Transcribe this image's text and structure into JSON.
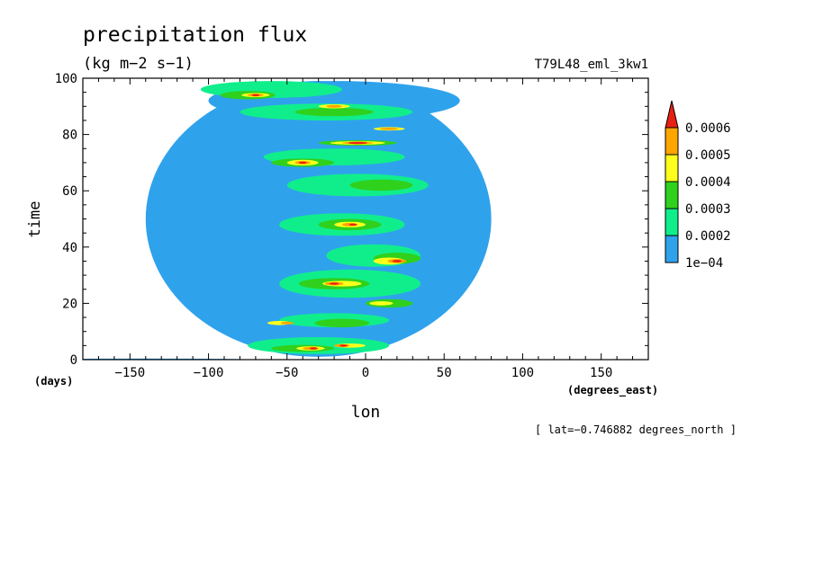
{
  "chart_data": {
    "type": "heatmap",
    "title": "precipitation flux",
    "units": "(kg m−2 s−1)",
    "run_label": "T79L48_eml_3kw1",
    "xlabel": "lon",
    "x_units": "(degrees_east)",
    "ylabel": "time",
    "y_units": "(days)",
    "footer": "[ lat=−0.746882 degrees_north ]",
    "xlim": [
      -180,
      180
    ],
    "ylim": [
      0,
      100
    ],
    "x_ticks": [
      -150,
      -100,
      -50,
      0,
      50,
      100,
      150
    ],
    "x_tick_labels": [
      "−150",
      "−100",
      "−50",
      "0",
      "50",
      "100",
      "150"
    ],
    "y_ticks": [
      0,
      20,
      40,
      60,
      80,
      100
    ],
    "y_tick_labels": [
      "0",
      "20",
      "40",
      "60",
      "80",
      "100"
    ],
    "colorbar": {
      "levels": [
        "1e−04",
        "0.0002",
        "0.0003",
        "0.0004",
        "0.0005",
        "0.0006"
      ],
      "colors": [
        "#2fa2ec",
        "#10ee8c",
        "#2fd11d",
        "#ffff1c",
        "#fea500",
        "#e82012"
      ]
    },
    "blobs": [
      {
        "lon": -140,
        "time": 0,
        "wlon": 140,
        "wtime": 0.5,
        "level": 1
      },
      {
        "lon": -30,
        "time": 50,
        "wlon": 220,
        "wtime": 98,
        "level": 1
      },
      {
        "lon": -28,
        "time": 15,
        "wlon": 130,
        "wtime": 24,
        "level": 1
      },
      {
        "lon": -10,
        "time": 62,
        "wlon": 150,
        "wtime": 30,
        "level": 1
      },
      {
        "lon": -20,
        "time": 92,
        "wlon": 160,
        "wtime": 14,
        "level": 1
      },
      {
        "lon": -65,
        "time": 80,
        "wlon": 30,
        "wtime": 10,
        "level": 1
      },
      {
        "lon": 25,
        "time": 40,
        "wlon": 60,
        "wtime": 14,
        "level": 1
      },
      {
        "lon": -30,
        "time": 5,
        "wlon": 90,
        "wtime": 6,
        "level": 2
      },
      {
        "lon": -20,
        "time": 14,
        "wlon": 70,
        "wtime": 5,
        "level": 2
      },
      {
        "lon": -10,
        "time": 27,
        "wlon": 90,
        "wtime": 10,
        "level": 2
      },
      {
        "lon": 5,
        "time": 37,
        "wlon": 60,
        "wtime": 8,
        "level": 2
      },
      {
        "lon": -15,
        "time": 48,
        "wlon": 80,
        "wtime": 8,
        "level": 2
      },
      {
        "lon": -5,
        "time": 62,
        "wlon": 90,
        "wtime": 8,
        "level": 2
      },
      {
        "lon": -20,
        "time": 72,
        "wlon": 90,
        "wtime": 6,
        "level": 2
      },
      {
        "lon": -25,
        "time": 88,
        "wlon": 110,
        "wtime": 6,
        "level": 2
      },
      {
        "lon": -60,
        "time": 96,
        "wlon": 90,
        "wtime": 6,
        "level": 2
      },
      {
        "lon": -40,
        "time": 4,
        "wlon": 40,
        "wtime": 2.5,
        "level": 3
      },
      {
        "lon": -15,
        "time": 13,
        "wlon": 35,
        "wtime": 3,
        "level": 3
      },
      {
        "lon": -20,
        "time": 27,
        "wlon": 45,
        "wtime": 4,
        "level": 3
      },
      {
        "lon": 20,
        "time": 36,
        "wlon": 30,
        "wtime": 4,
        "level": 3
      },
      {
        "lon": -10,
        "time": 48,
        "wlon": 40,
        "wtime": 4,
        "level": 3
      },
      {
        "lon": 10,
        "time": 62,
        "wlon": 40,
        "wtime": 4,
        "level": 3
      },
      {
        "lon": -40,
        "time": 70,
        "wlon": 40,
        "wtime": 3,
        "level": 3
      },
      {
        "lon": -5,
        "time": 77,
        "wlon": 50,
        "wtime": 2,
        "level": 3
      },
      {
        "lon": -20,
        "time": 88,
        "wlon": 50,
        "wtime": 3,
        "level": 3
      },
      {
        "lon": -75,
        "time": 94,
        "wlon": 35,
        "wtime": 3,
        "level": 3
      },
      {
        "lon": 15,
        "time": 20,
        "wlon": 30,
        "wtime": 3,
        "level": 3
      },
      {
        "lon": -35,
        "time": 4,
        "wlon": 18,
        "wtime": 1.5,
        "level": 4
      },
      {
        "lon": -10,
        "time": 5,
        "wlon": 20,
        "wtime": 1.5,
        "level": 4
      },
      {
        "lon": -55,
        "time": 13,
        "wlon": 15,
        "wtime": 1.5,
        "level": 4
      },
      {
        "lon": -15,
        "time": 27,
        "wlon": 25,
        "wtime": 2,
        "level": 4
      },
      {
        "lon": 15,
        "time": 35,
        "wlon": 20,
        "wtime": 2.5,
        "level": 4
      },
      {
        "lon": -10,
        "time": 48,
        "wlon": 20,
        "wtime": 2,
        "level": 4
      },
      {
        "lon": -40,
        "time": 70,
        "wlon": 20,
        "wtime": 2,
        "level": 4
      },
      {
        "lon": -5,
        "time": 77,
        "wlon": 35,
        "wtime": 1.2,
        "level": 4
      },
      {
        "lon": 15,
        "time": 82,
        "wlon": 20,
        "wtime": 1.2,
        "level": 4
      },
      {
        "lon": -20,
        "time": 90,
        "wlon": 20,
        "wtime": 1.5,
        "level": 4
      },
      {
        "lon": -70,
        "time": 94,
        "wlon": 18,
        "wtime": 1.5,
        "level": 4
      },
      {
        "lon": 10,
        "time": 20,
        "wlon": 15,
        "wtime": 1.5,
        "level": 4
      },
      {
        "lon": -35,
        "time": 4,
        "wlon": 10,
        "wtime": 1,
        "level": 5
      },
      {
        "lon": -15,
        "time": 5,
        "wlon": 10,
        "wtime": 1,
        "level": 5
      },
      {
        "lon": -50,
        "time": 13,
        "wlon": 8,
        "wtime": 1,
        "level": 5
      },
      {
        "lon": -20,
        "time": 27,
        "wlon": 12,
        "wtime": 1.2,
        "level": 5
      },
      {
        "lon": 20,
        "time": 35,
        "wlon": 12,
        "wtime": 1.5,
        "level": 5
      },
      {
        "lon": -10,
        "time": 48,
        "wlon": 10,
        "wtime": 1.2,
        "level": 5
      },
      {
        "lon": -40,
        "time": 70,
        "wlon": 10,
        "wtime": 1.2,
        "level": 5
      },
      {
        "lon": -5,
        "time": 77,
        "wlon": 20,
        "wtime": 0.8,
        "level": 5
      },
      {
        "lon": 15,
        "time": 82,
        "wlon": 12,
        "wtime": 0.8,
        "level": 5
      },
      {
        "lon": -20,
        "time": 90,
        "wlon": 10,
        "wtime": 1,
        "level": 5
      },
      {
        "lon": -70,
        "time": 94,
        "wlon": 10,
        "wtime": 1,
        "level": 5
      },
      {
        "lon": -33,
        "time": 4,
        "wlon": 5,
        "wtime": 0.6,
        "level": 6
      },
      {
        "lon": -14,
        "time": 5,
        "wlon": 5,
        "wtime": 0.6,
        "level": 6
      },
      {
        "lon": -20,
        "time": 27,
        "wlon": 6,
        "wtime": 0.7,
        "level": 6
      },
      {
        "lon": 20,
        "time": 35,
        "wlon": 6,
        "wtime": 0.8,
        "level": 6
      },
      {
        "lon": -8,
        "time": 48,
        "wlon": 5,
        "wtime": 0.7,
        "level": 6
      },
      {
        "lon": -40,
        "time": 70,
        "wlon": 5,
        "wtime": 0.7,
        "level": 6
      },
      {
        "lon": -5,
        "time": 77,
        "wlon": 12,
        "wtime": 0.5,
        "level": 6
      },
      {
        "lon": -70,
        "time": 94,
        "wlon": 5,
        "wtime": 0.6,
        "level": 6
      }
    ]
  }
}
